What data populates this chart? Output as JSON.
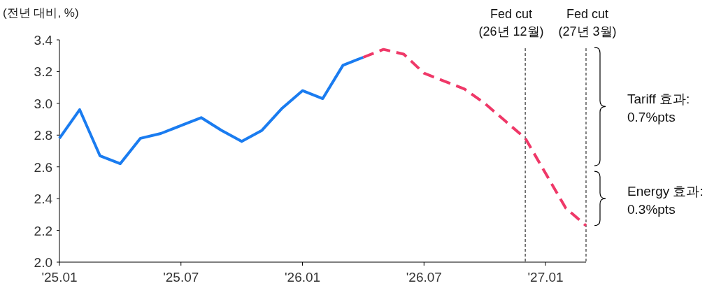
{
  "chart_data": {
    "type": "line",
    "ylabel": "(전년 대비, %)",
    "series": [
      {
        "color": "#1a7cf0",
        "line_style": "solid",
        "x": [
          "2025-01",
          "2025-02",
          "2025-03",
          "2025-04",
          "2025-05",
          "2025-06",
          "2025-07",
          "2025-08",
          "2025-09",
          "2025-10",
          "2025-11",
          "2025-12",
          "2026-01",
          "2026-02",
          "2026-03",
          "2026-04"
        ],
        "values": [
          2.78,
          2.96,
          2.67,
          2.62,
          2.78,
          2.81,
          2.86,
          2.91,
          2.83,
          2.76,
          2.83,
          2.97,
          3.08,
          3.03,
          3.24,
          3.29
        ]
      },
      {
        "color": "#ef3868",
        "line_style": "dashed",
        "x": [
          "2026-04",
          "2026-05",
          "2026-06",
          "2026-07",
          "2026-08",
          "2026-09",
          "2026-10",
          "2026-11",
          "2026-12",
          "2027-01",
          "2027-02",
          "2027-03"
        ],
        "values": [
          3.29,
          3.34,
          3.31,
          3.19,
          3.14,
          3.09,
          3.0,
          2.89,
          2.78,
          2.56,
          2.34,
          2.23
        ]
      }
    ],
    "xlim": [
      "2025-01",
      "2027-03"
    ],
    "xticks": [
      {
        "value": "2025-01",
        "label": "'25.01"
      },
      {
        "value": "2025-07",
        "label": "'25.07"
      },
      {
        "value": "2026-01",
        "label": "'26.01"
      },
      {
        "value": "2026-07",
        "label": "'26.07"
      },
      {
        "value": "2027-01",
        "label": "'27.01"
      }
    ],
    "ylim": [
      2.0,
      3.4
    ],
    "yticks": [
      {
        "value": 2.0,
        "label": "2.0"
      },
      2.2,
      2.4,
      2.6,
      2.8,
      {
        "value": 3.0,
        "label": "3.0"
      },
      3.2,
      3.4
    ],
    "ref_lines": [
      {
        "axis": "x",
        "value": "2026-12",
        "label": "Fed cut\n(26년 12월)",
        "color": "#333333",
        "line_style": "dashed"
      },
      {
        "axis": "x",
        "value": "2027-03",
        "label": "Fed cut\n(27년 3월)",
        "color": "#333333",
        "line_style": "dashed"
      }
    ],
    "annotations": [
      "Tariff 효과:\n0.7%pts",
      "Energy 효과:\n0.3%pts"
    ],
    "grid": false
  }
}
